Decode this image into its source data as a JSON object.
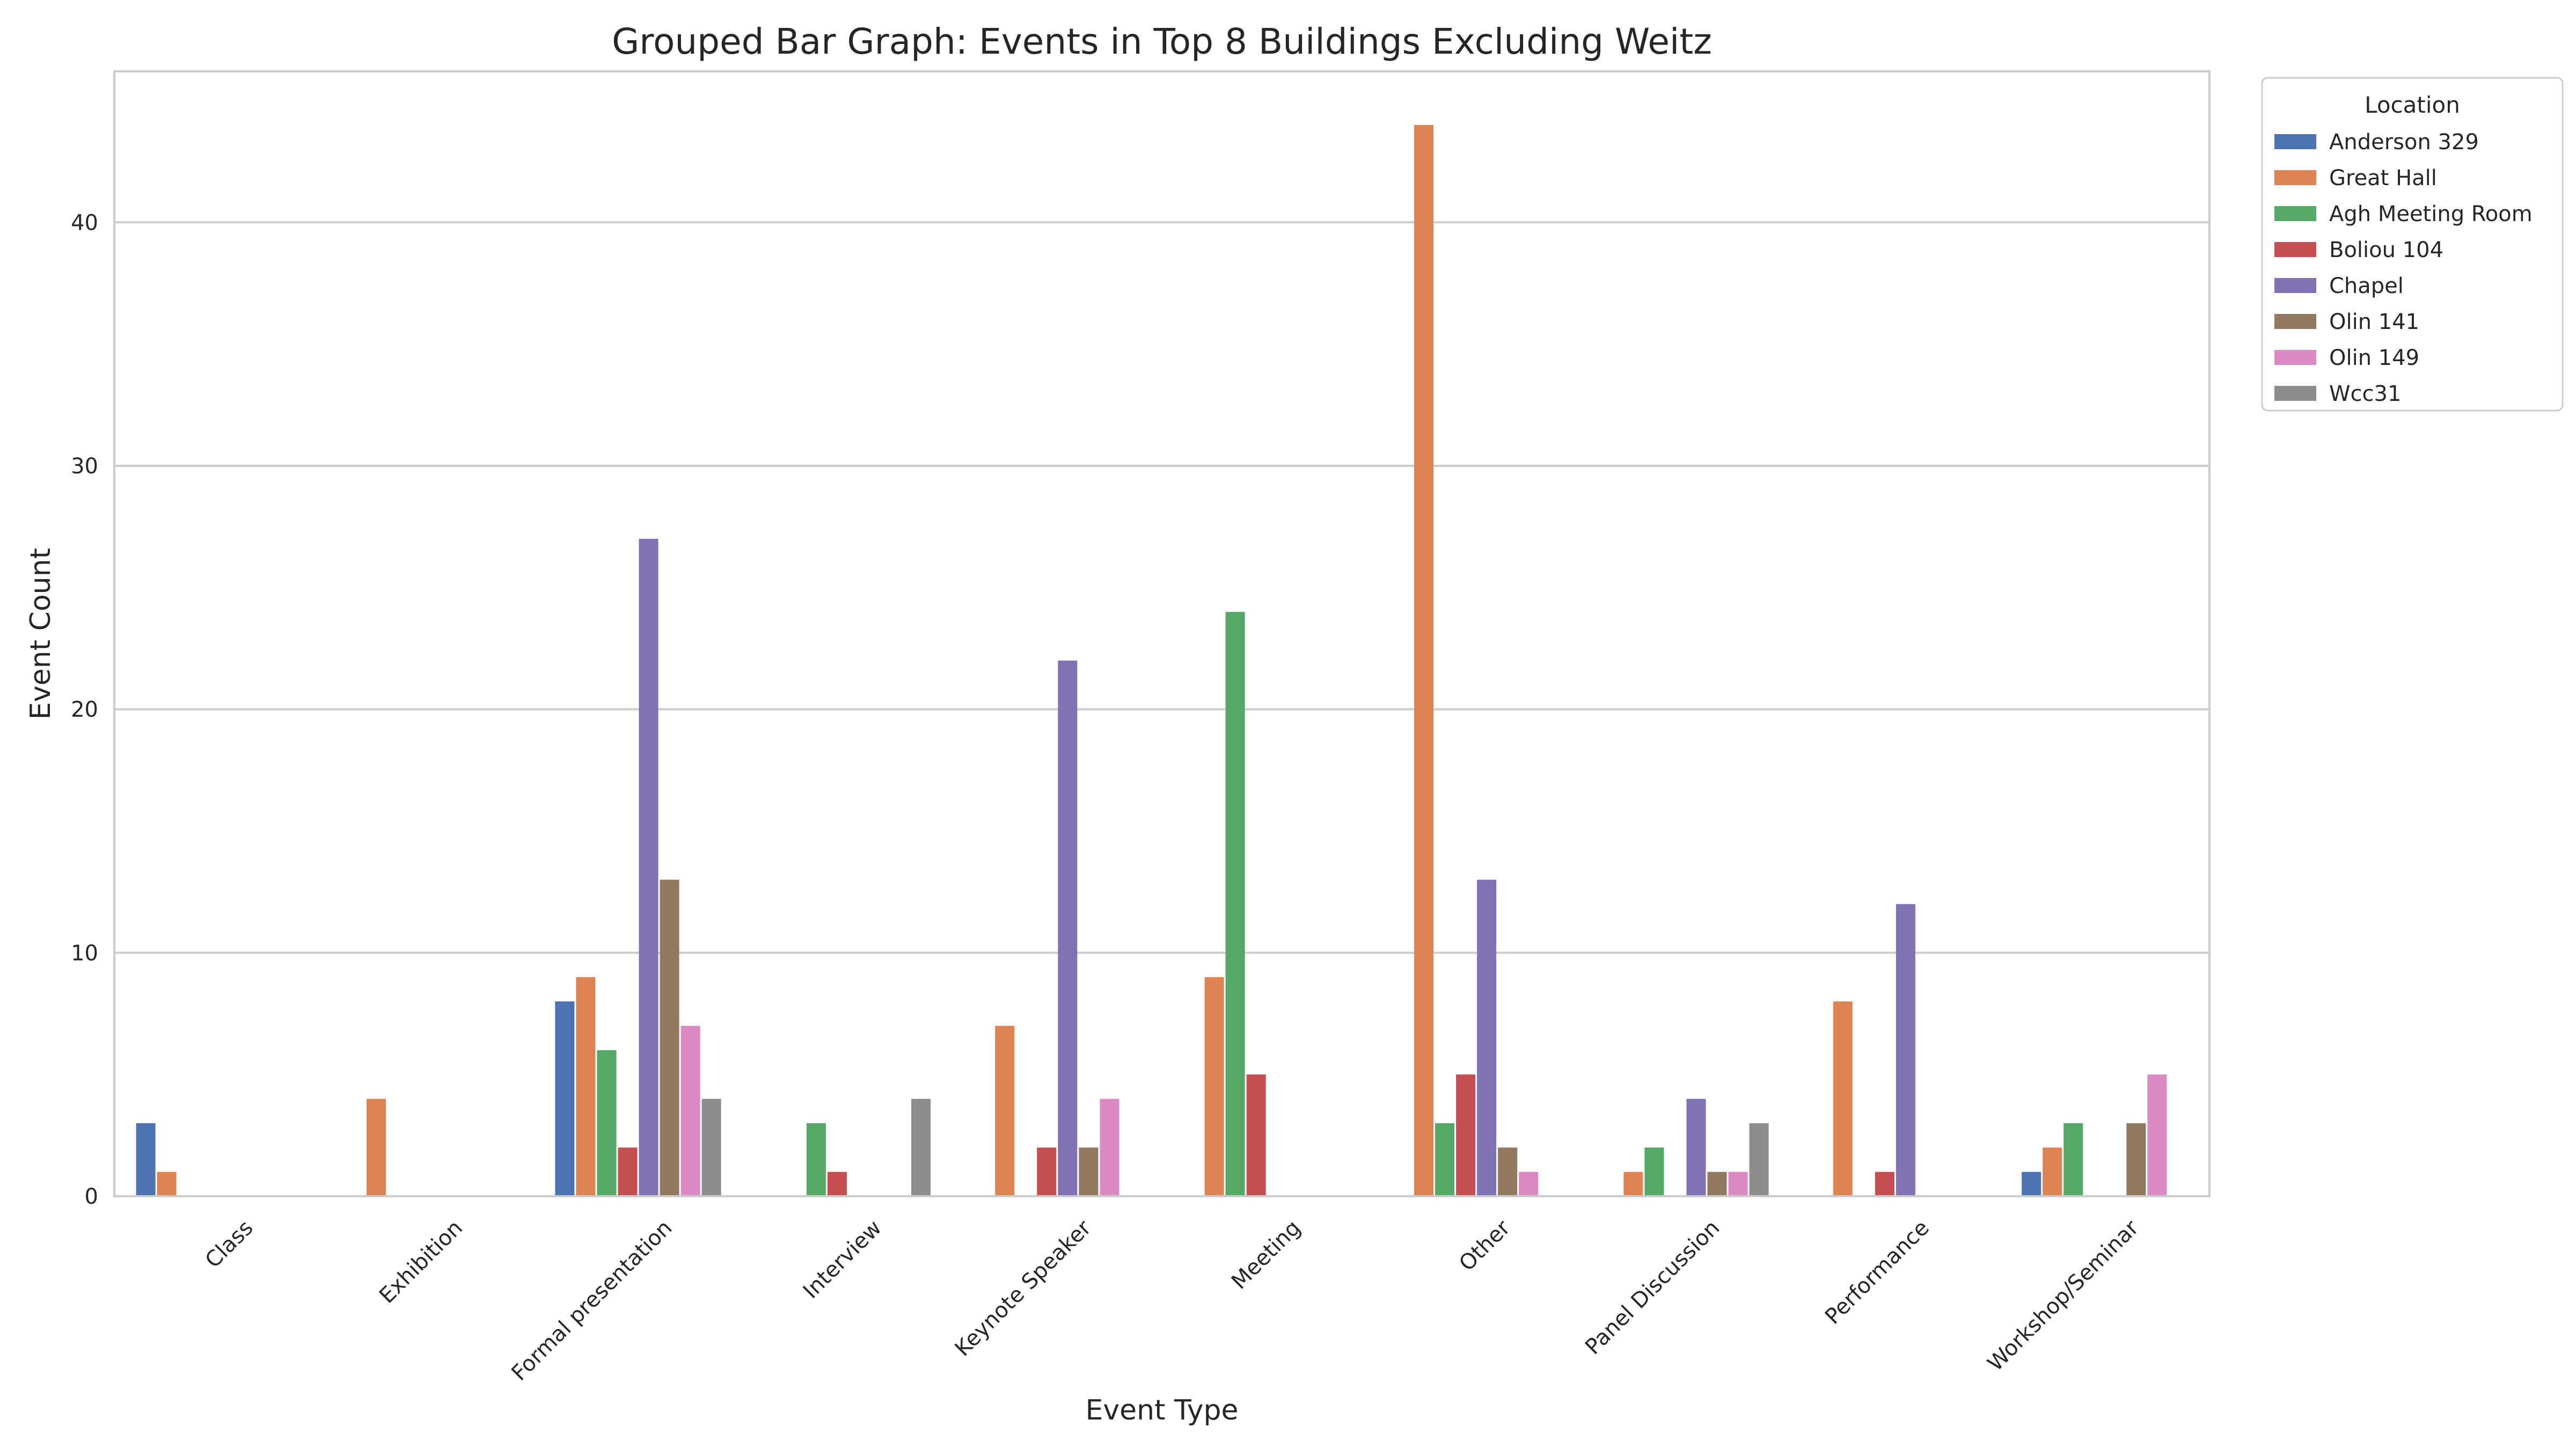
{
  "chart_data": {
    "type": "bar",
    "title": "Grouped Bar Graph: Events in Top 8 Buildings Excluding Weitz",
    "xlabel": "Event Type",
    "ylabel": "Event Count",
    "ylim": [
      0,
      46.2
    ],
    "yticks": [
      0,
      10,
      20,
      30,
      40
    ],
    "grid": true,
    "legend": {
      "title": "Location",
      "placement": "outside-top-right"
    },
    "categories": [
      "Class",
      "Exhibition",
      "Formal presentation",
      "Interview",
      "Keynote Speaker",
      "Meeting",
      "Other",
      "Panel Discussion",
      "Performance",
      "Workshop/Seminar"
    ],
    "series": [
      {
        "name": "Anderson 329",
        "color": "#4c72b0",
        "values": [
          3,
          0,
          8,
          0,
          0,
          0,
          0,
          0,
          0,
          1
        ]
      },
      {
        "name": "Great Hall",
        "color": "#dd8452",
        "values": [
          1,
          4,
          9,
          0,
          7,
          9,
          44,
          1,
          8,
          2
        ]
      },
      {
        "name": "Agh Meeting Room",
        "color": "#55a868",
        "values": [
          0,
          0,
          6,
          3,
          0,
          24,
          3,
          2,
          0,
          3
        ]
      },
      {
        "name": "Boliou 104",
        "color": "#c44e52",
        "values": [
          0,
          0,
          2,
          1,
          2,
          5,
          5,
          0,
          1,
          0
        ]
      },
      {
        "name": "Chapel",
        "color": "#8172b3",
        "values": [
          0,
          0,
          27,
          0,
          22,
          0,
          13,
          4,
          12,
          0
        ]
      },
      {
        "name": "Olin 141",
        "color": "#937860",
        "values": [
          0,
          0,
          13,
          0,
          2,
          0,
          2,
          1,
          0,
          3
        ]
      },
      {
        "name": "Olin 149",
        "color": "#da8bc3",
        "values": [
          0,
          0,
          7,
          0,
          4,
          0,
          1,
          1,
          0,
          5
        ]
      },
      {
        "name": "Wcc31",
        "color": "#8c8c8c",
        "values": [
          0,
          0,
          4,
          4,
          0,
          0,
          0,
          3,
          0,
          0
        ]
      }
    ]
  }
}
